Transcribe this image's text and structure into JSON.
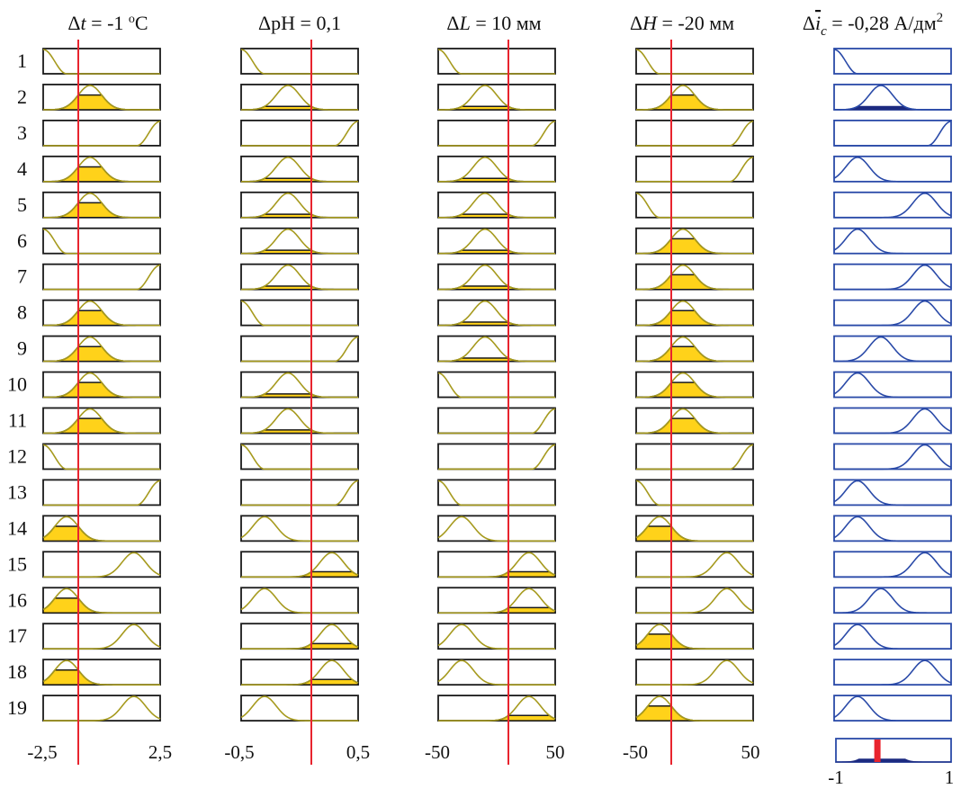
{
  "headers": {
    "col1": {
      "delta": "Δ",
      "var": "t",
      "eq": " = -1 ",
      "sup": "o",
      "unit": "C"
    },
    "col2": {
      "text": "ΔpH = 0,1"
    },
    "col3": {
      "delta": "Δ",
      "var": "L",
      "rest": " = 10 мм"
    },
    "col4": {
      "delta": "Δ",
      "var": "H",
      "rest": " = -20 мм"
    },
    "col5": {
      "delta": "Δ",
      "var": "i",
      "sub": "c",
      "rest": " = -0,28 А/дм",
      "sup": "2"
    }
  },
  "rows": [
    "1",
    "2",
    "3",
    "4",
    "5",
    "6",
    "7",
    "8",
    "9",
    "10",
    "11",
    "12",
    "13",
    "14",
    "15",
    "16",
    "17",
    "18",
    "19"
  ],
  "axes": {
    "col1": {
      "min": "-2,5",
      "max": "2,5"
    },
    "col2": {
      "min": "-0,5",
      "max": "0,5"
    },
    "col3": {
      "min": "-50",
      "max": "50"
    },
    "col4": {
      "min": "-50",
      "max": "50"
    },
    "col5": {
      "min": "-1",
      "max": "1"
    }
  },
  "colors": {
    "input_mf": "#a69a1e",
    "input_fill": "#ffd21a",
    "output_mf": "#2a4aa8",
    "output_fill": "#1c2a80",
    "crisp_line": "#e8242e",
    "result_bar": "#e8242e"
  },
  "diagram": {
    "inputs": [
      {
        "value": -1,
        "range": [
          -2.5,
          2.5
        ],
        "mfs": [
          0,
          1,
          2,
          1,
          1,
          0,
          2,
          1,
          1,
          1,
          1,
          0,
          2,
          3,
          4,
          3,
          4,
          3,
          4
        ]
      },
      {
        "value": 0.1,
        "range": [
          -0.5,
          0.5
        ],
        "mfs": [
          0,
          1,
          2,
          1,
          1,
          1,
          1,
          0,
          2,
          1,
          1,
          0,
          2,
          3,
          4,
          3,
          4,
          4,
          3
        ]
      },
      {
        "value": 10,
        "range": [
          -50,
          50
        ],
        "mfs": [
          0,
          1,
          2,
          1,
          1,
          1,
          1,
          1,
          1,
          0,
          2,
          2,
          0,
          3,
          4,
          4,
          3,
          3,
          4
        ]
      },
      {
        "value": -20,
        "range": [
          -50,
          50
        ],
        "mfs": [
          0,
          1,
          2,
          2,
          0,
          1,
          1,
          1,
          1,
          1,
          1,
          2,
          0,
          3,
          4,
          4,
          3,
          4,
          3
        ]
      }
    ],
    "output": {
      "value": -0.28,
      "range": [
        -1,
        1
      ],
      "mfs": [
        0,
        1,
        2,
        3,
        4,
        3,
        4,
        4,
        1,
        3,
        4,
        4,
        3,
        3,
        4,
        1,
        3,
        4,
        3
      ]
    },
    "mf_shapes": {
      "0": {
        "type": "zleft",
        "params": [
          -1,
          -0.6
        ]
      },
      "1": {
        "type": "gauss",
        "params": [
          -0.2,
          0.2
        ]
      },
      "2": {
        "type": "zright",
        "params": [
          0.6,
          1
        ]
      },
      "3": {
        "type": "gauss",
        "params": [
          -0.6,
          0.2
        ]
      },
      "4": {
        "type": "gauss",
        "params": [
          0.55,
          0.2
        ]
      }
    }
  }
}
